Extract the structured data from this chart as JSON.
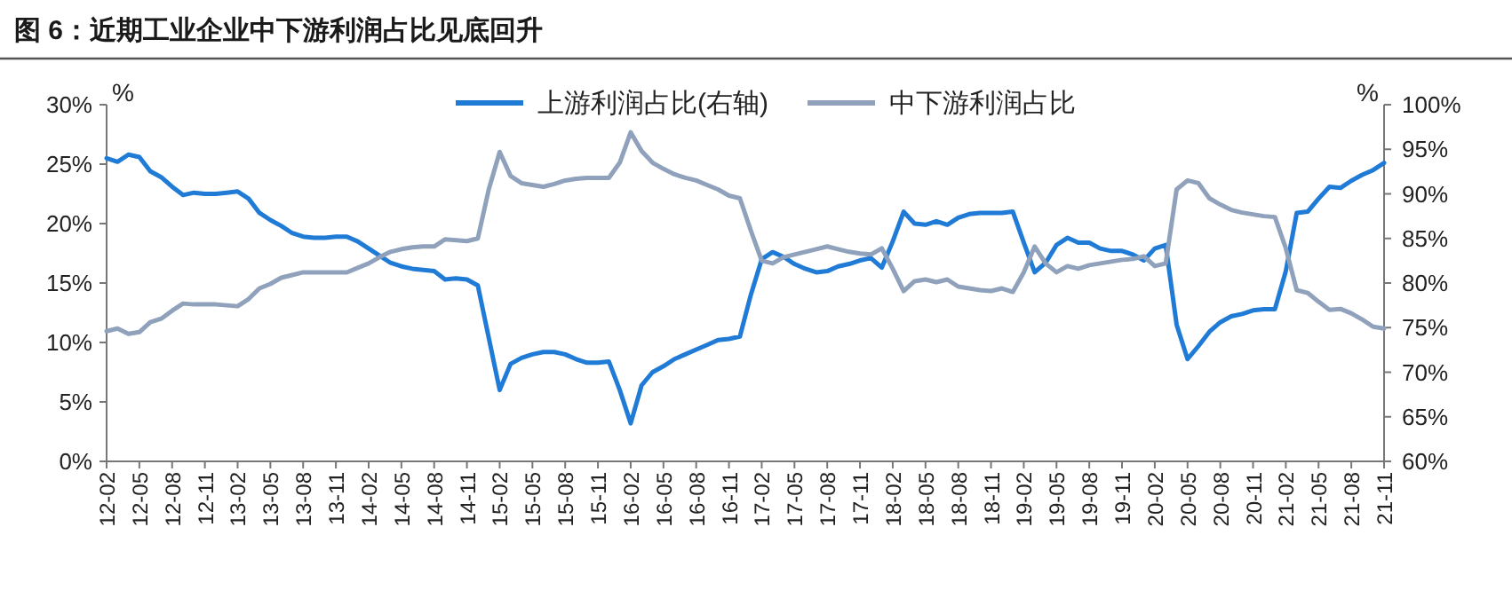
{
  "chart_data": {
    "type": "line",
    "title": "图 6：近期工业企业中下游利润占比见底回升",
    "ylabel": "%",
    "y2label": "%",
    "legend": "top",
    "categories": [
      "12-02",
      null,
      null,
      "12-05",
      null,
      null,
      "12-08",
      null,
      null,
      "12-11",
      null,
      null,
      "13-02",
      null,
      null,
      "13-05",
      null,
      null,
      "13-08",
      null,
      null,
      "13-11",
      null,
      null,
      "14-02",
      null,
      null,
      "14-05",
      null,
      null,
      "14-08",
      null,
      null,
      "14-11",
      null,
      null,
      "15-02",
      null,
      null,
      "15-05",
      null,
      null,
      "15-08",
      null,
      null,
      "15-11",
      null,
      null,
      "16-02",
      null,
      null,
      "16-05",
      null,
      null,
      "16-08",
      null,
      null,
      "16-11",
      null,
      null,
      "17-02",
      null,
      null,
      "17-05",
      null,
      null,
      "17-08",
      null,
      null,
      "17-11",
      null,
      null,
      "18-02",
      null,
      null,
      "18-05",
      null,
      null,
      "18-08",
      null,
      null,
      "18-11",
      null,
      null,
      "19-02",
      null,
      null,
      "19-05",
      null,
      null,
      "19-08",
      null,
      null,
      "19-11",
      null,
      null,
      "20-02",
      null,
      null,
      "20-05",
      null,
      null,
      "20-08",
      null,
      null,
      "20-11",
      null,
      null,
      "21-02",
      null,
      null,
      "21-05",
      null,
      null,
      "21-08",
      null,
      null,
      "21-11"
    ],
    "ylim": [
      0,
      30
    ],
    "yticks": [
      {
        "value": 0,
        "label": "0%"
      },
      {
        "value": 5,
        "label": "5%"
      },
      {
        "value": 10,
        "label": "10%"
      },
      {
        "value": 15,
        "label": "15%"
      },
      {
        "value": 20,
        "label": "20%"
      },
      {
        "value": 25,
        "label": "25%"
      },
      {
        "value": 30,
        "label": "30%"
      }
    ],
    "y2lim": [
      60,
      100
    ],
    "y2ticks": [
      {
        "value": 60,
        "label": "60%"
      },
      {
        "value": 65,
        "label": "65%"
      },
      {
        "value": 70,
        "label": "70%"
      },
      {
        "value": 75,
        "label": "75%"
      },
      {
        "value": 80,
        "label": "80%"
      },
      {
        "value": 85,
        "label": "85%"
      },
      {
        "value": 90,
        "label": "90%"
      },
      {
        "value": 95,
        "label": "95%"
      },
      {
        "value": 100,
        "label": "100%"
      }
    ],
    "series": [
      {
        "name": "上游利润占比(右轴)",
        "color": "#1f7bd6",
        "values": [
          25.5,
          25.2,
          25.8,
          25.6,
          24.4,
          23.9,
          23.1,
          22.4,
          22.6,
          22.5,
          22.5,
          22.6,
          22.7,
          22.1,
          20.9,
          20.3,
          19.8,
          19.2,
          18.9,
          18.8,
          18.8,
          18.9,
          18.9,
          18.5,
          17.9,
          17.3,
          16.7,
          16.4,
          16.2,
          16.1,
          16.0,
          15.3,
          15.4,
          15.3,
          14.8,
          10.4,
          6.0,
          8.2,
          8.7,
          9.0,
          9.2,
          9.2,
          9.0,
          8.6,
          8.3,
          8.3,
          8.4,
          6.0,
          3.2,
          6.4,
          7.5,
          8.0,
          8.6,
          9.0,
          9.4,
          9.8,
          10.2,
          10.3,
          10.5,
          14.0,
          17.0,
          17.6,
          17.2,
          16.6,
          16.2,
          15.9,
          16.0,
          16.4,
          16.6,
          16.9,
          17.1,
          16.3,
          18.5,
          21.0,
          20.0,
          19.9,
          20.2,
          19.9,
          20.5,
          20.8,
          20.9,
          20.9,
          20.9,
          21.0,
          18.4,
          15.9,
          16.7,
          18.2,
          18.8,
          18.4,
          18.4,
          17.9,
          17.7,
          17.7,
          17.4,
          16.9,
          17.9,
          18.2,
          11.5,
          8.6,
          9.7,
          10.9,
          11.7,
          12.2,
          12.4,
          12.7,
          12.8,
          12.8,
          16.0,
          20.9,
          21.0,
          22.1,
          23.1,
          23.0,
          23.6,
          24.1,
          24.5,
          25.1
        ]
      },
      {
        "name": "中下游利润占比",
        "color": "#8fa1bb",
        "axis": "y2",
        "values": [
          74.6,
          74.9,
          74.3,
          74.5,
          75.6,
          76.0,
          76.9,
          77.7,
          77.6,
          77.6,
          77.6,
          77.5,
          77.4,
          78.2,
          79.4,
          79.9,
          80.6,
          80.9,
          81.2,
          81.2,
          81.2,
          81.2,
          81.2,
          81.7,
          82.2,
          82.9,
          83.5,
          83.8,
          84.0,
          84.1,
          84.1,
          84.9,
          84.8,
          84.7,
          85.0,
          90.5,
          94.7,
          92.0,
          91.2,
          91.0,
          90.8,
          91.1,
          91.5,
          91.7,
          91.8,
          91.8,
          91.8,
          93.5,
          96.9,
          94.8,
          93.5,
          92.8,
          92.2,
          91.8,
          91.5,
          91.0,
          90.5,
          89.8,
          89.5,
          85.9,
          82.5,
          82.2,
          82.9,
          83.2,
          83.5,
          83.8,
          84.1,
          83.8,
          83.5,
          83.3,
          83.2,
          83.9,
          81.6,
          79.1,
          80.2,
          80.4,
          80.1,
          80.4,
          79.6,
          79.4,
          79.2,
          79.1,
          79.4,
          79.0,
          81.2,
          84.1,
          82.2,
          81.2,
          81.9,
          81.6,
          82.0,
          82.2,
          82.4,
          82.6,
          82.7,
          83.0,
          81.9,
          82.2,
          90.5,
          91.5,
          91.2,
          89.5,
          88.8,
          88.2,
          87.9,
          87.7,
          87.5,
          87.4,
          83.9,
          79.2,
          78.9,
          77.9,
          77.0,
          77.1,
          76.6,
          75.9,
          75.1,
          74.9
        ]
      }
    ]
  }
}
